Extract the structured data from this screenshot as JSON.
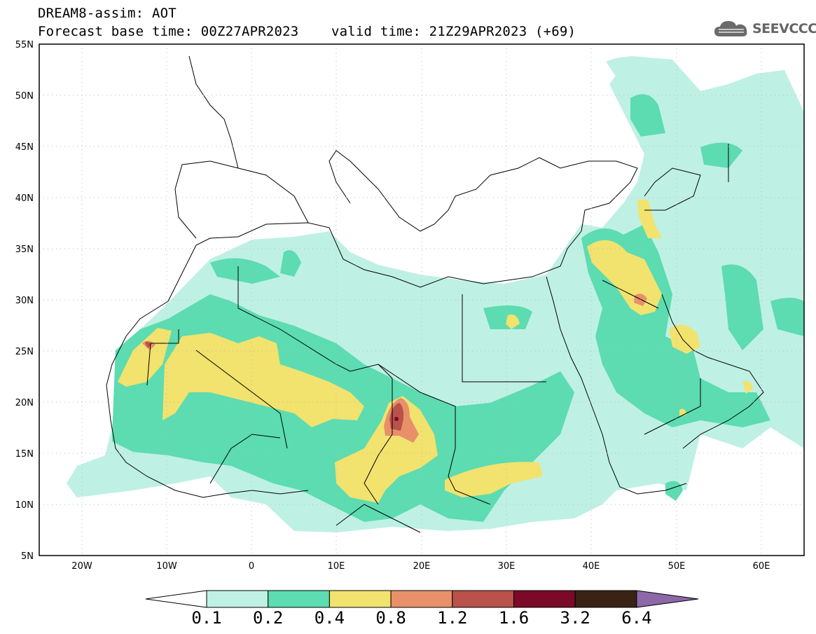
{
  "title": {
    "line1": "DREAM8-assim: AOT",
    "line2": "Forecast base time: 00Z27APR2023    valid time: 21Z29APR2023 (+69)"
  },
  "logo": {
    "text": "SEEVCCC",
    "icon": "cloud-icon"
  },
  "map": {
    "lon_range": [
      -25,
      65
    ],
    "lat_range": [
      5,
      55
    ],
    "lat_ticks": [
      "55N",
      "50N",
      "45N",
      "40N",
      "35N",
      "30N",
      "25N",
      "20N",
      "15N",
      "10N",
      "5N"
    ],
    "lon_ticks": [
      "20W",
      "10W",
      "0",
      "10E",
      "20E",
      "30E",
      "40E",
      "50E",
      "60E"
    ],
    "gridlines": "dotted"
  },
  "colorbar": {
    "labels": [
      "0.1",
      "0.2",
      "0.4",
      "0.8",
      "1.2",
      "1.6",
      "3.2",
      "6.4"
    ],
    "colors": [
      "#bff0e4",
      "#5cdcb0",
      "#f2e26e",
      "#e8906a",
      "#b8524a",
      "#7a0a28",
      "#3a2214",
      "#8c68a8"
    ],
    "under_color": "#ffffff"
  }
}
